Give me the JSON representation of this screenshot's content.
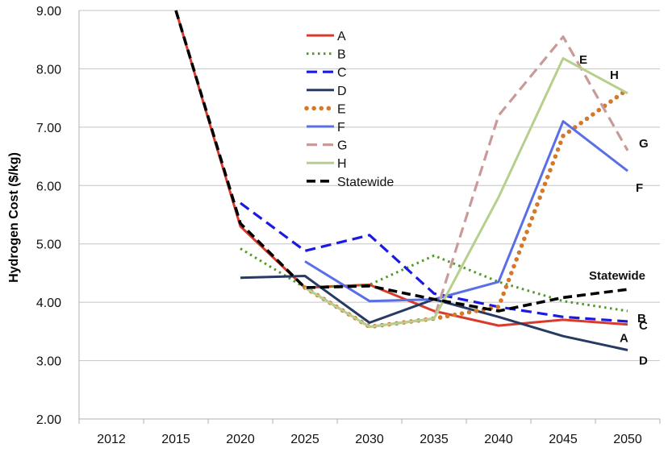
{
  "chart_data": {
    "type": "line",
    "title": "",
    "xlabel": "",
    "ylabel": "Hydrogen Cost ($/kg)",
    "categories": [
      "2012",
      "2015",
      "2020",
      "2025",
      "2030",
      "2035",
      "2040",
      "2045",
      "2050"
    ],
    "ylim": [
      2.0,
      9.0
    ],
    "yticks": [
      "2.00",
      "3.00",
      "4.00",
      "5.00",
      "6.00",
      "7.00",
      "8.00",
      "9.00"
    ],
    "grid": "horizontal",
    "legend_position": "top-center",
    "series": [
      {
        "name": "A",
        "color": "#d93a2b",
        "style": "solid",
        "values": [
          null,
          9.0,
          5.3,
          4.25,
          4.3,
          3.85,
          3.6,
          3.7,
          3.62
        ],
        "end_label": "A"
      },
      {
        "name": "B",
        "color": "#4f9a23",
        "style": "dotted",
        "values": [
          null,
          null,
          4.92,
          4.25,
          4.3,
          4.8,
          4.35,
          4.02,
          3.85
        ],
        "end_label": "B"
      },
      {
        "name": "C",
        "color": "#1a1ae0",
        "style": "dashed",
        "values": [
          null,
          null,
          5.7,
          4.88,
          5.15,
          4.15,
          3.92,
          3.75,
          3.67
        ],
        "end_label": "C"
      },
      {
        "name": "D",
        "color": "#263a63",
        "style": "solid",
        "values": [
          null,
          null,
          4.42,
          4.45,
          3.65,
          4.05,
          3.75,
          3.42,
          3.18
        ],
        "end_label": "D"
      },
      {
        "name": "E",
        "color": "#d4782a",
        "style": "dotted-heavy",
        "values": [
          null,
          null,
          null,
          4.25,
          3.58,
          3.72,
          3.92,
          6.85,
          7.65
        ],
        "end_label": "E"
      },
      {
        "name": "F",
        "color": "#5a6ee8",
        "style": "solid",
        "values": [
          null,
          null,
          null,
          4.7,
          4.02,
          4.05,
          4.35,
          7.1,
          6.25
        ],
        "end_label": "F"
      },
      {
        "name": "G",
        "color": "#c99a9a",
        "style": "dashed",
        "values": [
          null,
          null,
          null,
          4.25,
          3.58,
          3.72,
          7.2,
          8.55,
          6.6
        ],
        "end_label": "G"
      },
      {
        "name": "H",
        "color": "#b7cf8c",
        "style": "solid",
        "values": [
          null,
          null,
          null,
          4.25,
          3.58,
          3.72,
          5.8,
          8.18,
          7.58
        ],
        "end_label": "H"
      },
      {
        "name": "Statewide",
        "color": "#000000",
        "style": "dashed-heavy",
        "values": [
          null,
          9.0,
          5.35,
          4.25,
          4.28,
          4.05,
          3.85,
          4.08,
          4.22
        ],
        "end_label": "Statewide"
      }
    ]
  }
}
